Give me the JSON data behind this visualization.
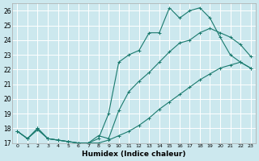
{
  "xlabel": "Humidex (Indice chaleur)",
  "bg_color": "#cce8ee",
  "grid_color": "#ffffff",
  "line_color": "#1a7a6e",
  "x_min": -0.5,
  "x_max": 23.5,
  "y_min": 17,
  "y_max": 26.5,
  "line1_x": [
    0,
    1,
    2,
    3,
    4,
    5,
    6,
    7,
    8,
    9,
    10,
    11,
    12,
    13,
    14,
    15,
    16,
    17,
    18,
    19,
    20,
    21,
    22,
    23
  ],
  "line1_y": [
    17.8,
    17.3,
    18.0,
    17.3,
    17.2,
    17.1,
    17.0,
    17.0,
    17.3,
    19.0,
    22.5,
    23.0,
    23.3,
    24.5,
    24.5,
    26.2,
    25.5,
    26.0,
    26.2,
    25.5,
    24.2,
    23.0,
    22.5,
    22.1
  ],
  "line2_x": [
    0,
    1,
    2,
    3,
    4,
    5,
    6,
    7,
    8,
    9,
    10,
    11,
    12,
    13,
    14,
    15,
    16,
    17,
    18,
    19,
    20,
    21,
    22,
    23
  ],
  "line2_y": [
    17.8,
    17.3,
    18.0,
    17.3,
    17.2,
    17.1,
    17.0,
    17.0,
    17.5,
    17.3,
    19.2,
    20.5,
    21.2,
    21.8,
    22.5,
    23.2,
    23.8,
    24.0,
    24.5,
    24.8,
    24.5,
    24.2,
    23.7,
    22.9
  ],
  "line3_x": [
    0,
    1,
    2,
    3,
    4,
    5,
    6,
    7,
    8,
    9,
    10,
    11,
    12,
    13,
    14,
    15,
    16,
    17,
    18,
    19,
    20,
    21,
    22,
    23
  ],
  "line3_y": [
    17.8,
    17.3,
    17.9,
    17.3,
    17.2,
    17.1,
    17.0,
    17.0,
    17.0,
    17.2,
    17.5,
    17.8,
    18.2,
    18.7,
    19.3,
    19.8,
    20.3,
    20.8,
    21.3,
    21.7,
    22.1,
    22.3,
    22.5,
    22.1
  ],
  "yticks": [
    17,
    18,
    19,
    20,
    21,
    22,
    23,
    24,
    25,
    26
  ],
  "xtick_labels": [
    "0",
    "1",
    "2",
    "3",
    "4",
    "5",
    "6",
    "7",
    "8",
    "9",
    "1011",
    "1213",
    "1415",
    "1617",
    "1819",
    "2021",
    "2223"
  ]
}
